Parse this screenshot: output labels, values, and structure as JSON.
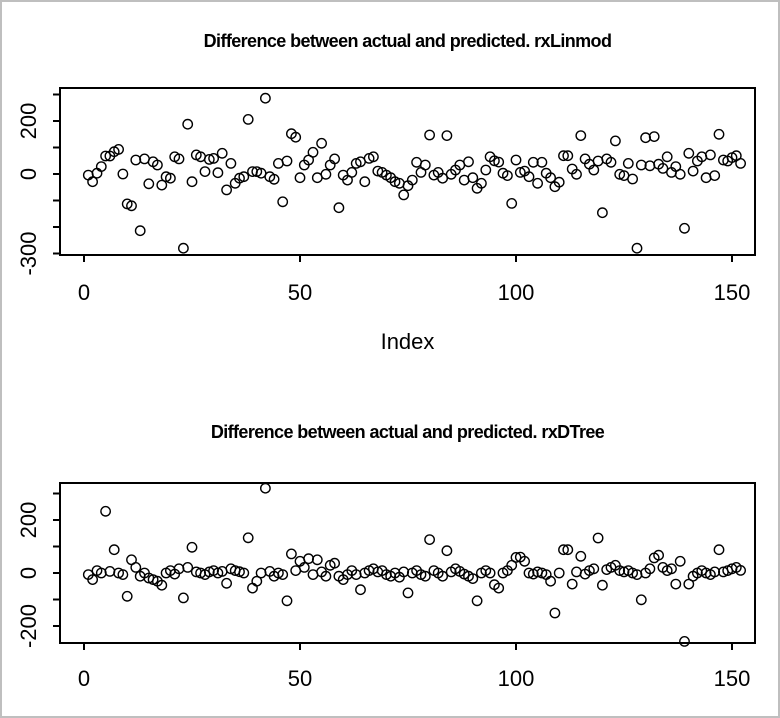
{
  "window": {
    "background": "#ffffff",
    "border_color": "#bfbfbf",
    "foreground": "#000000",
    "marker": "open-circle"
  },
  "chart_data": [
    {
      "type": "scatter",
      "title": "Difference between actual and predicted. rxLinmod",
      "xlabel": "Index",
      "ylabel": "",
      "grid": false,
      "legend": "none",
      "xlim": [
        0,
        155
      ],
      "ylim": [
        -310,
        325
      ],
      "x_ticks": [
        0,
        50,
        100,
        150
      ],
      "y_ticks": [
        300,
        200,
        100,
        0,
        -100,
        -200,
        -300
      ],
      "y_labeled_ticks": [
        {
          "value": 200,
          "label": "200"
        },
        {
          "value": 0,
          "label": "0"
        },
        {
          "value": -300,
          "label": "-300"
        }
      ],
      "x_is_index_1_to_n": true,
      "values": [
        -4,
        -29,
        3,
        28,
        68,
        68,
        84,
        93,
        0,
        -113,
        -120,
        53,
        -214,
        57,
        -37,
        46,
        34,
        -42,
        -10,
        -16,
        65,
        57,
        -280,
        188,
        -29,
        72,
        65,
        9,
        55,
        59,
        5,
        78,
        -60,
        40,
        -35,
        -16,
        -10,
        206,
        9,
        9,
        3,
        286,
        -10,
        -20,
        40,
        -105,
        49,
        152,
        139,
        -14,
        34,
        53,
        82,
        -14,
        116,
        -1,
        34,
        57,
        -127,
        -4,
        -23,
        6,
        40,
        46,
        -29,
        59,
        65,
        11,
        6,
        -4,
        -14,
        -29,
        -35,
        -79,
        -44,
        -23,
        44,
        6,
        34,
        147,
        -4,
        6,
        -16,
        145,
        -1,
        15,
        34,
        -23,
        46,
        -14,
        -54,
        -35,
        15,
        65,
        50,
        45,
        3,
        -6,
        -111,
        53,
        6,
        11,
        -10,
        44,
        -35,
        44,
        3,
        -14,
        -48,
        -31,
        69,
        69,
        19,
        -1,
        145,
        57,
        37,
        15,
        49,
        -146,
        57,
        44,
        125,
        -1,
        -6,
        40,
        -19,
        -280,
        34,
        137,
        31,
        141,
        37,
        21,
        65,
        6,
        28,
        -1,
        -205,
        78,
        11,
        49,
        65,
        -14,
        72,
        -6,
        150,
        53,
        49,
        62,
        69,
        40
      ]
    },
    {
      "type": "scatter",
      "title": "Difference between actual and predicted. rxDTree",
      "xlabel": "",
      "ylabel": "",
      "grid": false,
      "legend": "none",
      "xlim": [
        0,
        155
      ],
      "ylim": [
        -280,
        330
      ],
      "x_ticks": [
        0,
        50,
        100,
        150
      ],
      "y_ticks": [
        300,
        200,
        100,
        0,
        -100,
        -200
      ],
      "y_labeled_ticks": [
        {
          "value": 200,
          "label": "200"
        },
        {
          "value": 0,
          "label": "0"
        },
        {
          "value": -200,
          "label": "-200"
        }
      ],
      "x_is_index_1_to_n": true,
      "values": [
        -6,
        -25,
        9,
        0,
        233,
        6,
        88,
        0,
        -6,
        -88,
        50,
        21,
        -12,
        0,
        -19,
        -25,
        -31,
        -46,
        0,
        9,
        -4,
        16,
        -94,
        21,
        97,
        4,
        0,
        -6,
        4,
        9,
        0,
        6,
        -39,
        16,
        9,
        5,
        0,
        133,
        -57,
        -31,
        0,
        320,
        6,
        -12,
        0,
        -6,
        -105,
        72,
        9,
        44,
        21,
        54,
        -6,
        50,
        4,
        -12,
        29,
        37,
        -12,
        -25,
        -6,
        9,
        -6,
        -63,
        0,
        9,
        16,
        4,
        9,
        -6,
        -12,
        0,
        -16,
        4,
        -75,
        0,
        9,
        -6,
        -12,
        126,
        9,
        0,
        -12,
        84,
        4,
        16,
        6,
        -4,
        -12,
        -21,
        -105,
        0,
        9,
        0,
        -44,
        -57,
        0,
        9,
        29,
        59,
        60,
        44,
        0,
        -4,
        4,
        0,
        -6,
        -31,
        -151,
        0,
        88,
        88,
        -42,
        4,
        63,
        -4,
        9,
        16,
        132,
        -46,
        13,
        21,
        29,
        9,
        4,
        9,
        0,
        -6,
        -101,
        0,
        16,
        57,
        67,
        21,
        9,
        16,
        -42,
        44,
        -258,
        -42,
        -12,
        0,
        9,
        0,
        -6,
        4,
        88,
        4,
        9,
        16,
        21,
        10
      ]
    }
  ]
}
